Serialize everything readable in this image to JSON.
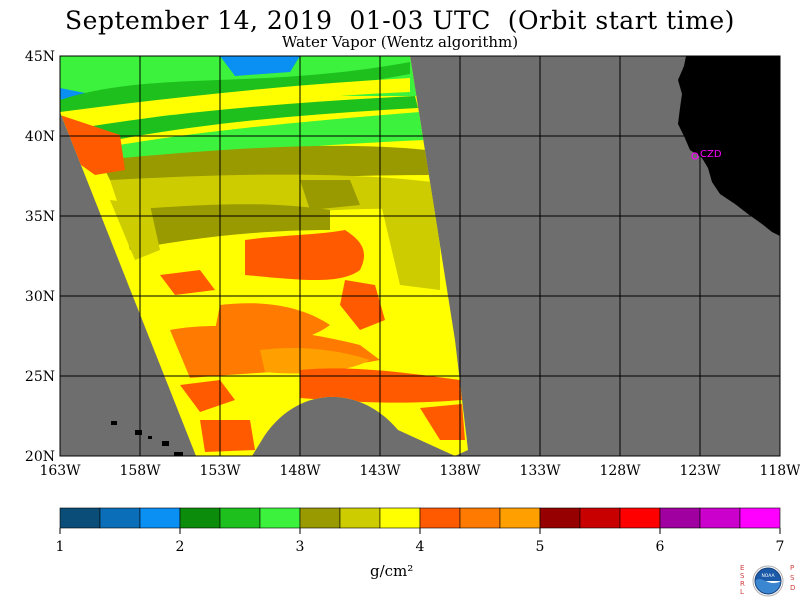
{
  "title": "September 14, 2019  01-03 UTC  (Orbit start time)",
  "subtitle": "Water Vapor (Wentz algorithm)",
  "map": {
    "lat_labels": [
      "45N",
      "40N",
      "35N",
      "30N",
      "25N",
      "20N"
    ],
    "lon_labels": [
      "163W",
      "158W",
      "153W",
      "148W",
      "143W",
      "138W",
      "133W",
      "128W",
      "123W",
      "118W"
    ],
    "extent": {
      "lon": [
        -163,
        -118
      ],
      "lat": [
        20,
        45
      ]
    },
    "station_label": "CZD",
    "colors": {
      "no_data": "#6e6e6e",
      "land": "#000000",
      "grid": "#000000",
      "station": "#ff00ff"
    }
  },
  "colorbar": {
    "tick_labels": [
      "1",
      "2",
      "3",
      "4",
      "5",
      "6",
      "7"
    ],
    "unit": "g/cm²",
    "colors": [
      "#0a4d78",
      "#0a6fb8",
      "#0a8ff2",
      "#0b8c0b",
      "#1ec01e",
      "#3cf23c",
      "#999900",
      "#cccc00",
      "#ffff00",
      "#ff5a00",
      "#ff7a00",
      "#ff9f00",
      "#960000",
      "#c80000",
      "#ff0000",
      "#a000a0",
      "#cc00cc",
      "#ff00ff"
    ]
  },
  "logo": {
    "text": "NOAA",
    "left_letters": "ESRL",
    "right_letters": "PSD"
  }
}
